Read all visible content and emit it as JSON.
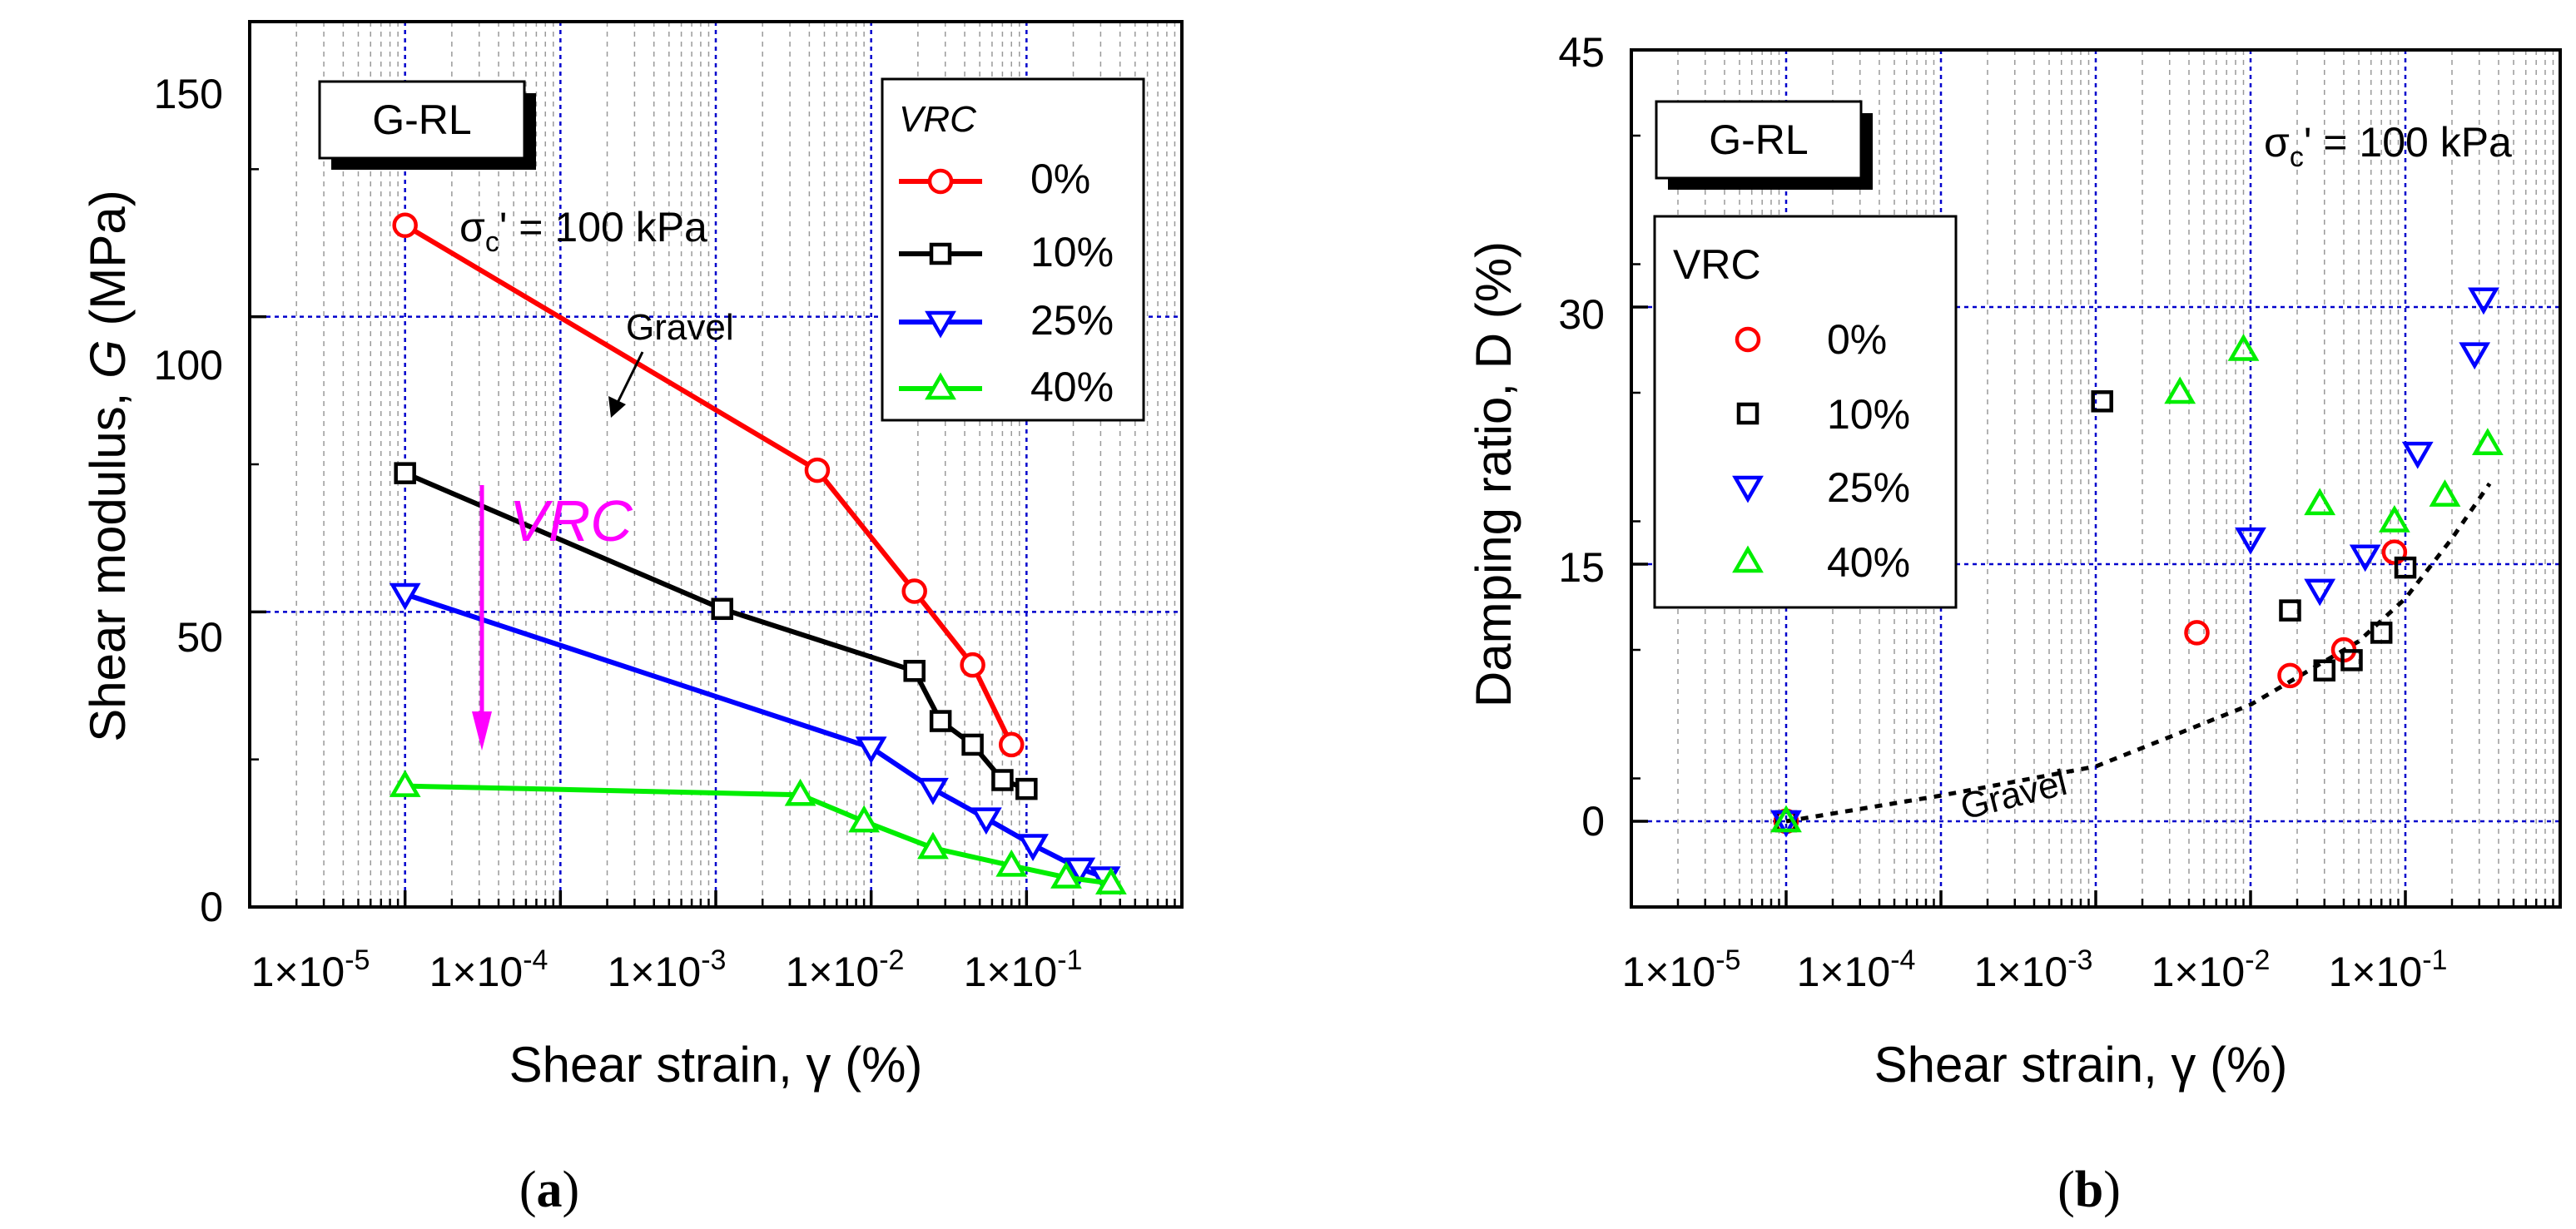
{
  "colors": {
    "s0": "#ff0000",
    "s10": "#000000",
    "s25": "#0000ff",
    "s40": "#00ee00",
    "vrc_arrow": "#ff00ff",
    "grid": "#0000cc"
  },
  "chart_data": [
    {
      "panel": "a",
      "panel_label_open": "(",
      "panel_label_letter": "a",
      "panel_label_close": ")",
      "type": "line",
      "xscale": "log",
      "xlim": [
        1e-06,
        1
      ],
      "ylim": [
        0,
        150
      ],
      "xlabel": "Shear strain, γ (%)",
      "xlabel_main": "Shear strain, ",
      "xlabel_sym": "γ",
      "xlabel_unit": " (%)",
      "ylabel": "Shear modulus, G (MPa)",
      "ylabel_main": "Shear modulus, ",
      "ylabel_sym": "G",
      "ylabel_unit": " (MPa)",
      "xtick_labels": [
        {
          "mant": "1×10",
          "exp": "-5",
          "value": 1e-05
        },
        {
          "mant": "1×10",
          "exp": "-4",
          "value": 0.0001
        },
        {
          "mant": "1×10",
          "exp": "-3",
          "value": 0.001
        },
        {
          "mant": "1×10",
          "exp": "-2",
          "value": 0.01
        },
        {
          "mant": "1×10",
          "exp": "-1",
          "value": 0.1
        }
      ],
      "yticks": [
        0,
        50,
        100,
        150
      ],
      "ytick_labels": [
        "0",
        "50",
        "100",
        "150"
      ],
      "sample_box": "G-RL",
      "stress_label": {
        "sym": "σ",
        "sub": "c",
        "rest": "' = 100 kPa"
      },
      "legend_title": "VRC",
      "legend_labels": [
        "0%",
        "10%",
        "25%",
        "40%"
      ],
      "annotation_gravel": "Gravel",
      "annotation_vrc": "VRC",
      "series": [
        {
          "name": "0%",
          "marker": "circle",
          "x": [
            1e-05,
            0.0045,
            0.019,
            0.045,
            0.08
          ],
          "y": [
            115.5,
            74,
            53.5,
            41,
            27.5
          ]
        },
        {
          "name": "10%",
          "marker": "square",
          "x": [
            1e-05,
            0.0011,
            0.019,
            0.028,
            0.045,
            0.07,
            0.1
          ],
          "y": [
            73.5,
            50.5,
            40,
            31.5,
            27.5,
            21.5,
            20
          ]
        },
        {
          "name": "25%",
          "marker": "triangle-down",
          "x": [
            1e-05,
            0.01,
            0.025,
            0.055,
            0.11,
            0.22,
            0.32
          ],
          "y": [
            53,
            27,
            20,
            15,
            10.5,
            6.5,
            5
          ]
        },
        {
          "name": "40%",
          "marker": "triangle-up",
          "x": [
            1e-05,
            0.0035,
            0.009,
            0.025,
            0.08,
            0.18,
            0.35
          ],
          "y": [
            20.5,
            19,
            14.5,
            10,
            7,
            5,
            4
          ]
        }
      ]
    },
    {
      "panel": "b",
      "panel_label_open": "(",
      "panel_label_letter": "b",
      "panel_label_close": ")",
      "type": "scatter",
      "xscale": "log",
      "xlim": [
        1e-06,
        1
      ],
      "ylim": [
        -5,
        45
      ],
      "xlabel": "Shear strain, γ (%)",
      "xlabel_main": "Shear strain, ",
      "xlabel_sym": "γ",
      "xlabel_unit": " (%)",
      "ylabel": "Damping ratio, D (%)",
      "xtick_labels": [
        {
          "mant": "1×10",
          "exp": "-5",
          "value": 1e-05
        },
        {
          "mant": "1×10",
          "exp": "-4",
          "value": 0.0001
        },
        {
          "mant": "1×10",
          "exp": "-3",
          "value": 0.001
        },
        {
          "mant": "1×10",
          "exp": "-2",
          "value": 0.01
        },
        {
          "mant": "1×10",
          "exp": "-1",
          "value": 0.1
        }
      ],
      "yticks": [
        0,
        15,
        30,
        45
      ],
      "ytick_labels": [
        "0",
        "15",
        "30",
        "45"
      ],
      "sample_box": "G-RL",
      "stress_label": {
        "sym": "σ",
        "sub": "c",
        "rest": "' = 100 kPa"
      },
      "legend_title": "VRC",
      "legend_labels": [
        "0%",
        "10%",
        "25%",
        "40%"
      ],
      "annotation_gravel": "Gravel",
      "series": [
        {
          "name": "0%",
          "marker": "circle",
          "x": [
            1e-05,
            0.0045,
            0.018,
            0.04,
            0.085
          ],
          "y": [
            0,
            11,
            8.5,
            10,
            15.7
          ]
        },
        {
          "name": "10%",
          "marker": "square",
          "x": [
            1e-05,
            0.0011,
            0.018,
            0.03,
            0.045,
            0.07,
            0.1
          ],
          "y": [
            0,
            24.5,
            12.3,
            8.8,
            9.4,
            11,
            14.8
          ]
        },
        {
          "name": "25%",
          "marker": "triangle-down",
          "x": [
            1e-05,
            0.01,
            0.028,
            0.055,
            0.12,
            0.28,
            0.32
          ],
          "y": [
            0,
            16.5,
            13.5,
            15.5,
            21.5,
            27.3,
            30.5
          ]
        },
        {
          "name": "40%",
          "marker": "triangle-up",
          "x": [
            1e-05,
            0.0035,
            0.009,
            0.028,
            0.085,
            0.18,
            0.34
          ],
          "y": [
            0,
            25,
            27.5,
            18.5,
            17.5,
            19,
            22
          ]
        }
      ],
      "trend_gravel": {
        "x": [
          1e-05,
          0.0001,
          0.001,
          0.01,
          0.05,
          0.1,
          0.2,
          0.35
        ],
        "y": [
          0,
          1.5,
          3.2,
          6.8,
          10.5,
          13,
          16.5,
          19.7
        ]
      }
    }
  ]
}
